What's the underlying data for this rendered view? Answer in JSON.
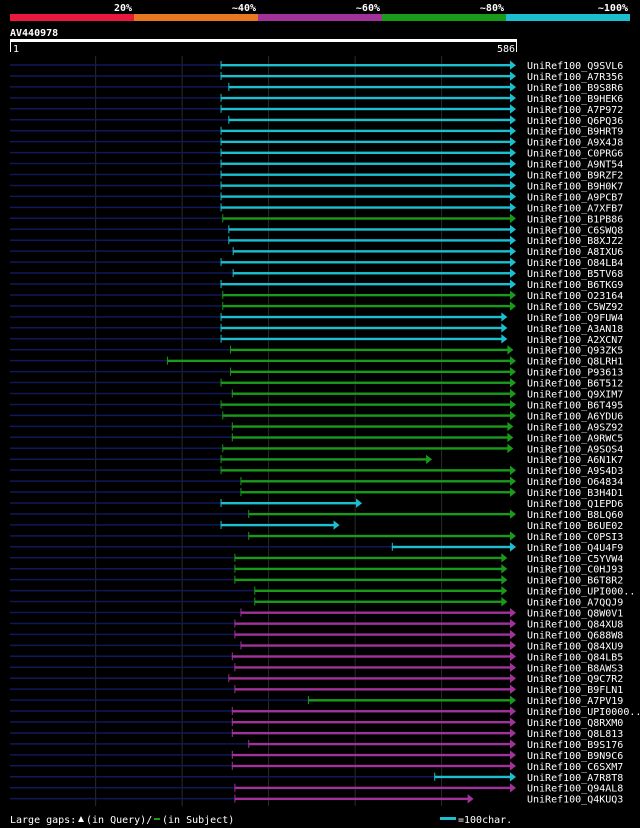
{
  "query": {
    "id": "AV440978",
    "start": "1",
    "end": "586",
    "length": 586
  },
  "identity_scale": [
    {
      "label": "20%",
      "color": "#e8193c"
    },
    {
      "label": "~40%",
      "color": "#e87722"
    },
    {
      "label": "~60%",
      "color": "#a0329a"
    },
    {
      "label": "~80%",
      "color": "#1a9a1a"
    },
    {
      "label": "~100%",
      "color": "#1bbfcf"
    }
  ],
  "footer": {
    "gaps_label": "Large gaps:",
    "gaps_query": "(in Query)/",
    "gaps_subject": "(in Subject)",
    "scale_label": "=100char."
  },
  "chart_data": {
    "type": "alignment",
    "x_range": [
      1,
      586
    ],
    "hits": [
      {
        "name": "UniRef100_Q9SVL6",
        "start": 245,
        "end": 586,
        "cls": "c"
      },
      {
        "name": "UniRef100_A7R356",
        "start": 245,
        "end": 586,
        "cls": "c"
      },
      {
        "name": "UniRef100_B9S8R6",
        "start": 254,
        "end": 586,
        "cls": "c"
      },
      {
        "name": "UniRef100_B9HEK6",
        "start": 245,
        "end": 586,
        "cls": "c"
      },
      {
        "name": "UniRef100_A7P972",
        "start": 245,
        "end": 586,
        "cls": "c"
      },
      {
        "name": "UniRef100_Q6PQ36",
        "start": 254,
        "end": 586,
        "cls": "c"
      },
      {
        "name": "UniRef100_B9HRT9",
        "start": 245,
        "end": 586,
        "cls": "c"
      },
      {
        "name": "UniRef100_A9X4J8",
        "start": 245,
        "end": 586,
        "cls": "c"
      },
      {
        "name": "UniRef100_C0PRG6",
        "start": 245,
        "end": 586,
        "cls": "c"
      },
      {
        "name": "UniRef100_A9NT54",
        "start": 245,
        "end": 586,
        "cls": "c"
      },
      {
        "name": "UniRef100_B9RZF2",
        "start": 245,
        "end": 586,
        "cls": "c"
      },
      {
        "name": "UniRef100_B9H0K7",
        "start": 245,
        "end": 586,
        "cls": "c"
      },
      {
        "name": "UniRef100_A9PCB7",
        "start": 245,
        "end": 586,
        "cls": "c"
      },
      {
        "name": "UniRef100_A7XFB7",
        "start": 245,
        "end": 586,
        "cls": "c"
      },
      {
        "name": "UniRef100_B1PB86",
        "start": 247,
        "end": 586,
        "cls": "g"
      },
      {
        "name": "UniRef100_C6SWQ8",
        "start": 254,
        "end": 586,
        "cls": "c"
      },
      {
        "name": "UniRef100_B8XJZ2",
        "start": 254,
        "end": 586,
        "cls": "c"
      },
      {
        "name": "UniRef100_A8IXU6",
        "start": 259,
        "end": 586,
        "cls": "c"
      },
      {
        "name": "UniRef100_O84LB4",
        "start": 245,
        "end": 586,
        "cls": "c"
      },
      {
        "name": "UniRef100_B5TV68",
        "start": 259,
        "end": 586,
        "cls": "c"
      },
      {
        "name": "UniRef100_B6TKG9",
        "start": 245,
        "end": 586,
        "cls": "c"
      },
      {
        "name": "UniRef100_O23164",
        "start": 247,
        "end": 586,
        "cls": "g"
      },
      {
        "name": "UniRef100_C5WZ92",
        "start": 247,
        "end": 586,
        "cls": "g"
      },
      {
        "name": "UniRef100_Q9FUW4",
        "start": 245,
        "end": 576,
        "cls": "c"
      },
      {
        "name": "UniRef100_A3AN18",
        "start": 245,
        "end": 576,
        "cls": "c"
      },
      {
        "name": "UniRef100_A2XCN7",
        "start": 245,
        "end": 576,
        "cls": "c"
      },
      {
        "name": "UniRef100_Q93ZK5",
        "start": 256,
        "end": 583,
        "cls": "g"
      },
      {
        "name": "UniRef100_Q8LRH1",
        "start": 183,
        "end": 586,
        "cls": "g"
      },
      {
        "name": "UniRef100_P93613",
        "start": 256,
        "end": 586,
        "cls": "g"
      },
      {
        "name": "UniRef100_B6T512",
        "start": 245,
        "end": 586,
        "cls": "g"
      },
      {
        "name": "UniRef100_Q9XIM7",
        "start": 258,
        "end": 586,
        "cls": "g"
      },
      {
        "name": "UniRef100_B6T495",
        "start": 245,
        "end": 586,
        "cls": "g"
      },
      {
        "name": "UniRef100_A6YDU6",
        "start": 247,
        "end": 586,
        "cls": "g"
      },
      {
        "name": "UniRef100_A9SZ92",
        "start": 258,
        "end": 583,
        "cls": "g"
      },
      {
        "name": "UniRef100_A9RWC5",
        "start": 258,
        "end": 583,
        "cls": "g"
      },
      {
        "name": "UniRef100_A9SOS4",
        "start": 247,
        "end": 583,
        "cls": "g"
      },
      {
        "name": "UniRef100_A6N1K7",
        "start": 245,
        "end": 489,
        "cls": "g"
      },
      {
        "name": "UniRef100_A9S4D3",
        "start": 245,
        "end": 586,
        "cls": "g"
      },
      {
        "name": "UniRef100_O64834",
        "start": 268,
        "end": 586,
        "cls": "g"
      },
      {
        "name": "UniRef100_B3H4D1",
        "start": 268,
        "end": 586,
        "cls": "g"
      },
      {
        "name": "UniRef100_Q1EPD6",
        "start": 245,
        "end": 408,
        "cls": "c"
      },
      {
        "name": "UniRef100_B8LQ60",
        "start": 277,
        "end": 586,
        "cls": "g"
      },
      {
        "name": "UniRef100_B6UE02",
        "start": 245,
        "end": 382,
        "cls": "c"
      },
      {
        "name": "UniRef100_C0PSI3",
        "start": 277,
        "end": 586,
        "cls": "g"
      },
      {
        "name": "UniRef100_Q4U4F9",
        "start": 443,
        "end": 586,
        "cls": "c"
      },
      {
        "name": "UniRef100_C5YVW4",
        "start": 261,
        "end": 576,
        "cls": "g"
      },
      {
        "name": "UniRef100_C0HJ93",
        "start": 261,
        "end": 576,
        "cls": "g"
      },
      {
        "name": "UniRef100_B6T8R2",
        "start": 261,
        "end": 576,
        "cls": "g"
      },
      {
        "name": "UniRef100_UPI000..",
        "start": 284,
        "end": 576,
        "cls": "g"
      },
      {
        "name": "UniRef100_A7QQJ9",
        "start": 284,
        "end": 576,
        "cls": "g"
      },
      {
        "name": "UniRef100_Q8W0V1",
        "start": 268,
        "end": 586,
        "cls": "m"
      },
      {
        "name": "UniRef100_Q84XU8",
        "start": 261,
        "end": 586,
        "cls": "m"
      },
      {
        "name": "UniRef100_Q688W8",
        "start": 261,
        "end": 586,
        "cls": "m"
      },
      {
        "name": "UniRef100_Q84XU9",
        "start": 268,
        "end": 586,
        "cls": "m"
      },
      {
        "name": "UniRef100_Q84LB5",
        "start": 258,
        "end": 586,
        "cls": "m"
      },
      {
        "name": "UniRef100_B8AWS3",
        "start": 261,
        "end": 586,
        "cls": "m"
      },
      {
        "name": "UniRef100_Q9C7R2",
        "start": 254,
        "end": 586,
        "cls": "m"
      },
      {
        "name": "UniRef100_B9FLN1",
        "start": 261,
        "end": 586,
        "cls": "m"
      },
      {
        "name": "UniRef100_A7PV19",
        "start": 346,
        "end": 586,
        "cls": "g"
      },
      {
        "name": "UniRef100_UPI0000..",
        "start": 258,
        "end": 586,
        "cls": "m"
      },
      {
        "name": "UniRef100_Q8RXM0",
        "start": 258,
        "end": 586,
        "cls": "m"
      },
      {
        "name": "UniRef100_Q8L813",
        "start": 258,
        "end": 586,
        "cls": "m"
      },
      {
        "name": "UniRef100_B9S176",
        "start": 277,
        "end": 586,
        "cls": "m"
      },
      {
        "name": "UniRef100_B9N9C6",
        "start": 258,
        "end": 586,
        "cls": "m"
      },
      {
        "name": "UniRef100_C6SXM7",
        "start": 258,
        "end": 586,
        "cls": "m"
      },
      {
        "name": "UniRef100_A7R8T8",
        "start": 492,
        "end": 586,
        "cls": "c"
      },
      {
        "name": "UniRef100_Q94AL8",
        "start": 261,
        "end": 586,
        "cls": "m"
      },
      {
        "name": "UniRef100_Q4KUQ3",
        "start": 261,
        "end": 537,
        "cls": "m"
      }
    ]
  }
}
